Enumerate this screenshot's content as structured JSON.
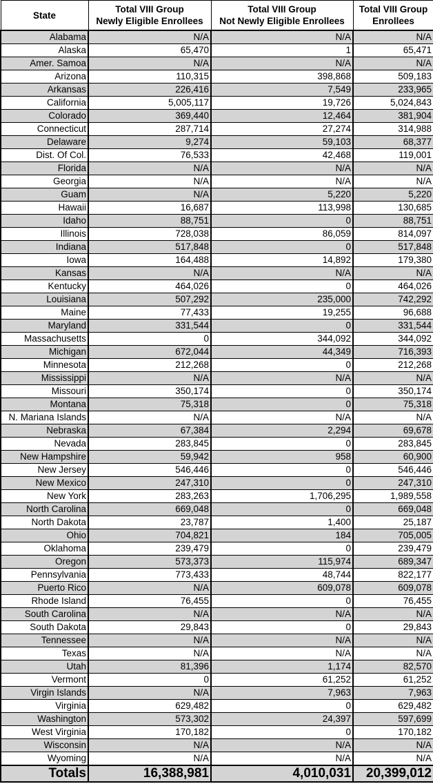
{
  "headers": [
    "State",
    "Total VIII Group\nNewly Eligible Enrollees",
    "Total VIII Group\nNot Newly Eligible Enrollees",
    "Total VIII Group\nEnrollees"
  ],
  "rows": [
    [
      "Alabama",
      "N/A",
      "N/A",
      "N/A"
    ],
    [
      "Alaska",
      "65,470",
      "1",
      "65,471"
    ],
    [
      "Amer. Samoa",
      "N/A",
      "N/A",
      "N/A"
    ],
    [
      "Arizona",
      "110,315",
      "398,868",
      "509,183"
    ],
    [
      "Arkansas",
      "226,416",
      "7,549",
      "233,965"
    ],
    [
      "California",
      "5,005,117",
      "19,726",
      "5,024,843"
    ],
    [
      "Colorado",
      "369,440",
      "12,464",
      "381,904"
    ],
    [
      "Connecticut",
      "287,714",
      "27,274",
      "314,988"
    ],
    [
      "Delaware",
      "9,274",
      "59,103",
      "68,377"
    ],
    [
      "Dist. Of Col.",
      "76,533",
      "42,468",
      "119,001"
    ],
    [
      "Florida",
      "N/A",
      "N/A",
      "N/A"
    ],
    [
      "Georgia",
      "N/A",
      "N/A",
      "N/A"
    ],
    [
      "Guam",
      "N/A",
      "5,220",
      "5,220"
    ],
    [
      "Hawaii",
      "16,687",
      "113,998",
      "130,685"
    ],
    [
      "Idaho",
      "88,751",
      "0",
      "88,751"
    ],
    [
      "Illinois",
      "728,038",
      "86,059",
      "814,097"
    ],
    [
      "Indiana",
      "517,848",
      "0",
      "517,848"
    ],
    [
      "Iowa",
      "164,488",
      "14,892",
      "179,380"
    ],
    [
      "Kansas",
      "N/A",
      "N/A",
      "N/A"
    ],
    [
      "Kentucky",
      "464,026",
      "0",
      "464,026"
    ],
    [
      "Louisiana",
      "507,292",
      "235,000",
      "742,292"
    ],
    [
      "Maine",
      "77,433",
      "19,255",
      "96,688"
    ],
    [
      "Maryland",
      "331,544",
      "0",
      "331,544"
    ],
    [
      "Massachusetts",
      "0",
      "344,092",
      "344,092"
    ],
    [
      "Michigan",
      "672,044",
      "44,349",
      "716,393"
    ],
    [
      "Minnesota",
      "212,268",
      "0",
      "212,268"
    ],
    [
      "Mississippi",
      "N/A",
      "N/A",
      "N/A"
    ],
    [
      "Missouri",
      "350,174",
      "0",
      "350,174"
    ],
    [
      "Montana",
      "75,318",
      "0",
      "75,318"
    ],
    [
      "N. Mariana Islands",
      "N/A",
      "N/A",
      "N/A"
    ],
    [
      "Nebraska",
      "67,384",
      "2,294",
      "69,678"
    ],
    [
      "Nevada",
      "283,845",
      "0",
      "283,845"
    ],
    [
      "New Hampshire",
      "59,942",
      "958",
      "60,900"
    ],
    [
      "New Jersey",
      "546,446",
      "0",
      "546,446"
    ],
    [
      "New Mexico",
      "247,310",
      "0",
      "247,310"
    ],
    [
      "New York",
      "283,263",
      "1,706,295",
      "1,989,558"
    ],
    [
      "North Carolina",
      "669,048",
      "0",
      "669,048"
    ],
    [
      "North Dakota",
      "23,787",
      "1,400",
      "25,187"
    ],
    [
      "Ohio",
      "704,821",
      "184",
      "705,005"
    ],
    [
      "Oklahoma",
      "239,479",
      "0",
      "239,479"
    ],
    [
      "Oregon",
      "573,373",
      "115,974",
      "689,347"
    ],
    [
      "Pennsylvania",
      "773,433",
      "48,744",
      "822,177"
    ],
    [
      "Puerto Rico",
      "N/A",
      "609,078",
      "609,078"
    ],
    [
      "Rhode Island",
      "76,455",
      "0",
      "76,455"
    ],
    [
      "South Carolina",
      "N/A",
      "N/A",
      "N/A"
    ],
    [
      "South Dakota",
      "29,843",
      "0",
      "29,843"
    ],
    [
      "Tennessee",
      "N/A",
      "N/A",
      "N/A"
    ],
    [
      "Texas",
      "N/A",
      "N/A",
      "N/A"
    ],
    [
      "Utah",
      "81,396",
      "1,174",
      "82,570"
    ],
    [
      "Vermont",
      "0",
      "61,252",
      "61,252"
    ],
    [
      "Virgin Islands",
      "N/A",
      "7,963",
      "7,963"
    ],
    [
      "Virginia",
      "629,482",
      "0",
      "629,482"
    ],
    [
      "Washington",
      "573,302",
      "24,397",
      "597,699"
    ],
    [
      "West Virginia",
      "170,182",
      "0",
      "170,182"
    ],
    [
      "Wisconsin",
      "N/A",
      "N/A",
      "N/A"
    ],
    [
      "Wyoming",
      "N/A",
      "N/A",
      "N/A"
    ]
  ],
  "totals": [
    "Totals",
    "16,388,981",
    "4,010,031",
    "20,399,012"
  ],
  "colors": {
    "shade": "#d4d4d4",
    "border": "#000000"
  }
}
